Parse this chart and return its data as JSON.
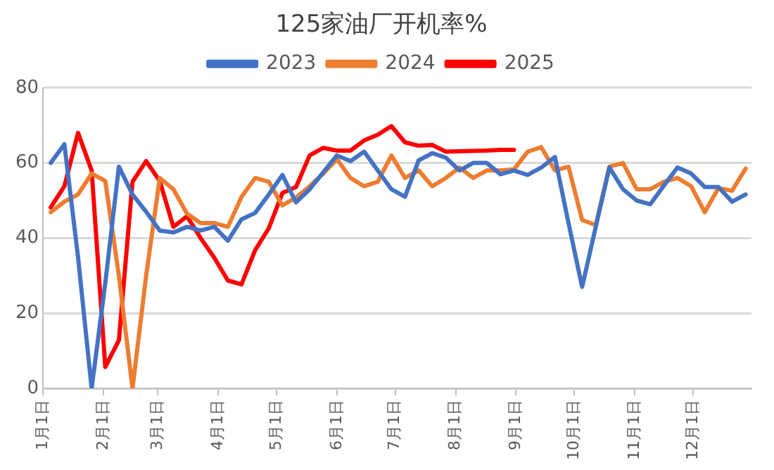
{
  "chart_data": {
    "type": "line",
    "title": "125家油厂开机率%",
    "x": [
      "--01-05",
      "--01-12",
      "--01-19",
      "--01-26",
      "--02-02",
      "--02-09",
      "--02-16",
      "--02-23",
      "--03-02",
      "--03-09",
      "--03-16",
      "--03-23",
      "--03-30",
      "--04-06",
      "--04-13",
      "--04-20",
      "--04-27",
      "--05-04",
      "--05-11",
      "--05-18",
      "--05-25",
      "--06-01",
      "--06-08",
      "--06-15",
      "--06-22",
      "--06-29",
      "--07-06",
      "--07-13",
      "--07-20",
      "--07-27",
      "--08-03",
      "--08-10",
      "--08-17",
      "--08-24",
      "--08-31",
      "--09-07",
      "--09-14",
      "--09-21",
      "--09-28",
      "--10-05",
      "--10-12",
      "--10-19",
      "--10-26",
      "--11-02",
      "--11-09",
      "--11-16",
      "--11-23",
      "--11-30",
      "--12-07",
      "--12-14",
      "--12-21",
      "--12-28"
    ],
    "series": [
      {
        "name": "2023",
        "color": "#4472c4",
        "values": [
          60,
          65,
          35,
          0,
          28,
          59,
          51.6,
          47,
          42,
          41.5,
          43,
          42,
          43,
          39.3,
          45,
          46.7,
          51.6,
          56.8,
          49.5,
          53,
          57.5,
          62,
          60.5,
          63,
          58,
          53,
          51,
          60.7,
          62.6,
          61.4,
          58,
          60,
          60,
          57,
          58,
          56.8,
          58.8,
          61.6,
          44,
          27,
          43,
          58.8,
          53,
          50,
          49,
          54,
          58.8,
          57.2,
          53.6,
          53.6,
          49.7,
          51.6
        ]
      },
      {
        "name": "2024",
        "color": "#ed7d31",
        "values": [
          46.9,
          49.7,
          51.6,
          57.2,
          55.2,
          30,
          0,
          30,
          56,
          53,
          46.5,
          44,
          44,
          43,
          51,
          56,
          55,
          48.7,
          50.8,
          53.8,
          57.2,
          61,
          56,
          53.8,
          55,
          62,
          56,
          58,
          53.8,
          56,
          58.8,
          56,
          58,
          58,
          58.3,
          63,
          64.2,
          58,
          59,
          44.8,
          43.5,
          59,
          60,
          53,
          53,
          55,
          56,
          53.8,
          46.9,
          53.3,
          52.6,
          58.5
        ]
      },
      {
        "name": "2025",
        "color": "#ff0000",
        "values": [
          48.2,
          53.8,
          68,
          58,
          5.7,
          12.8,
          55,
          60.5,
          55.2,
          43,
          45.8,
          40,
          34.8,
          28.7,
          27.7,
          36.8,
          42.6,
          52,
          53.6,
          62,
          64,
          63.3,
          63.3,
          66,
          67.5,
          69.8,
          65.5,
          64.6,
          64.8,
          63,
          63.1,
          63.2,
          63.3,
          63.5,
          63.5,
          null,
          null,
          null,
          null,
          null,
          null,
          null,
          null,
          null,
          null,
          null,
          null,
          null,
          null,
          null,
          null,
          null
        ]
      }
    ],
    "xlim": [
      "--01-01",
      "--12-31"
    ],
    "xticks": [
      {
        "value": "--01-01",
        "label": "1月1日"
      },
      {
        "value": "--02-01",
        "label": "2月1日"
      },
      {
        "value": "--03-01",
        "label": "3月1日"
      },
      {
        "value": "--04-01",
        "label": "4月1日"
      },
      {
        "value": "--05-01",
        "label": "5月1日"
      },
      {
        "value": "--06-01",
        "label": "6月1日"
      },
      {
        "value": "--07-01",
        "label": "7月1日"
      },
      {
        "value": "--08-01",
        "label": "8月1日"
      },
      {
        "value": "--09-01",
        "label": "9月1日"
      },
      {
        "value": "--10-01",
        "label": "10月1日"
      },
      {
        "value": "--11-01",
        "label": "11月1日"
      },
      {
        "value": "--12-01",
        "label": "12月1日"
      }
    ],
    "ylim": [
      0,
      80
    ],
    "yticks": [
      0,
      20,
      40,
      60,
      80
    ],
    "grid": "y",
    "legend": "top",
    "marker": "none",
    "line_style": "solid"
  }
}
